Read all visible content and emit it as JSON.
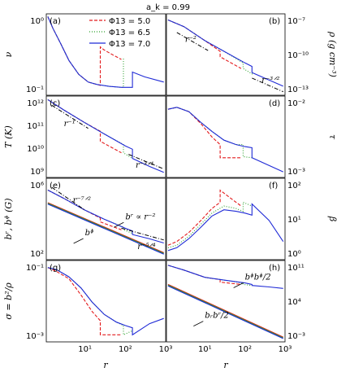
{
  "figure": {
    "title": "a_k = 0.99",
    "xlabel": "r"
  },
  "chart_data": [
    {
      "type": "line",
      "panel": "(a)",
      "ylabel": "ν",
      "ylog": true,
      "xlim": [
        1.1,
        1000
      ],
      "ylim": [
        0.01,
        1.3
      ],
      "yticks": [
        "10⁰",
        "10⁻¹"
      ],
      "xticks": [],
      "series": [
        {
          "name": "Φ13 = 5.0",
          "color": "#e31a1c",
          "dash": "4,2",
          "x": [
            1.2,
            1.6,
            2.5,
            4,
            7,
            12,
            20,
            24,
            24,
            30,
            50,
            80
          ],
          "y": [
            1.1,
            0.55,
            0.22,
            0.08,
            0.035,
            0.022,
            0.019,
            0.018,
            0.18,
            0.15,
            0.11,
            0.085
          ]
        },
        {
          "name": "Φ13 = 6.5",
          "color": "#2ca02c",
          "dash": "1,2",
          "x": [
            1.2,
            1.6,
            2.5,
            4,
            7,
            12,
            20,
            40,
            80,
            90,
            90
          ],
          "y": [
            1.1,
            0.55,
            0.22,
            0.08,
            0.035,
            0.022,
            0.019,
            0.017,
            0.016,
            0.016,
            0.09
          ]
        },
        {
          "name": "Φ13 = 7.0",
          "color": "#1f2ad6",
          "dash": "",
          "x": [
            1.2,
            1.6,
            2.5,
            4,
            7,
            12,
            20,
            40,
            80,
            150,
            150,
            300,
            900
          ],
          "y": [
            1.1,
            0.55,
            0.22,
            0.08,
            0.035,
            0.022,
            0.019,
            0.017,
            0.016,
            0.016,
            0.04,
            0.03,
            0.022
          ]
        }
      ],
      "annotations": []
    },
    {
      "type": "line",
      "panel": "(b)",
      "ylabel": "ρ (g cm⁻³)",
      "ylog": true,
      "xlim": [
        1.1,
        1000
      ],
      "ylim": [
        1e-13,
        1e-06
      ],
      "yticks": [
        "10⁻⁷",
        "10⁻¹⁰",
        "10⁻¹³"
      ],
      "xticks": [],
      "series": [
        {
          "name": "",
          "color": "#e31a1c",
          "dash": "4,2",
          "x": [
            1.2,
            3,
            10,
            24,
            24,
            80
          ],
          "y": [
            3e-07,
            8e-08,
            5e-09,
            6e-10,
            2e-10,
            2e-11
          ]
        },
        {
          "name": "",
          "color": "#2ca02c",
          "dash": "1,2",
          "x": [
            1.2,
            3,
            10,
            30,
            90,
            90,
            160
          ],
          "y": [
            3e-07,
            8e-08,
            5e-09,
            6e-10,
            6e-11,
            2e-11,
            6e-12
          ]
        },
        {
          "name": "",
          "color": "#1f2ad6",
          "dash": "",
          "x": [
            1.2,
            3,
            10,
            30,
            100,
            150,
            150,
            400,
            900
          ],
          "y": [
            3e-07,
            8e-08,
            5e-09,
            6e-10,
            6e-11,
            3e-11,
            9e-12,
            2e-12,
            6e-13
          ]
        }
      ],
      "annotations": [
        {
          "text": "r⁻²",
          "style": "dashdot",
          "x": [
            2,
            12
          ],
          "y": [
            2.5e-08,
            7e-10
          ],
          "label_at": [
            3.2,
            4e-09
          ]
        },
        {
          "text": "r⁻³ᐟ²",
          "style": "dashdot",
          "x": [
            150,
            900
          ],
          "y": [
            3e-12,
            2e-13
          ],
          "label_at": [
            260,
            1.2e-12
          ]
        }
      ]
    },
    {
      "type": "line",
      "panel": "(c)",
      "ylabel": "T (K)",
      "ylog": true,
      "xlim": [
        1.1,
        1000
      ],
      "ylim": [
        300000000.0,
        1000000000000.0
      ],
      "yticks": [
        "10¹²",
        "10¹¹",
        "10¹⁰",
        "10⁹"
      ],
      "xticks": [],
      "series": [
        {
          "name": "",
          "color": "#e31a1c",
          "dash": "4,2",
          "x": [
            1.2,
            3,
            10,
            24,
            24,
            80
          ],
          "y": [
            700000000000.0,
            250000000000.0,
            70000000000.0,
            30000000000.0,
            11000000000.0,
            3500000000.0
          ]
        },
        {
          "name": "",
          "color": "#2ca02c",
          "dash": "1,2",
          "x": [
            1.2,
            3,
            10,
            30,
            90,
            90,
            150
          ],
          "y": [
            700000000000.0,
            250000000000.0,
            70000000000.0,
            23000000000.0,
            8000000000.0,
            3500000000.0,
            2000000000.0
          ]
        },
        {
          "name": "",
          "color": "#1f2ad6",
          "dash": "",
          "x": [
            1.2,
            3,
            10,
            30,
            100,
            150,
            150,
            400,
            900
          ],
          "y": [
            700000000000.0,
            250000000000.0,
            70000000000.0,
            23000000000.0,
            7000000000.0,
            5000000000.0,
            2000000000.0,
            900000000.0,
            500000000.0
          ]
        }
      ],
      "annotations": [
        {
          "text": "r⁻¹",
          "style": "dashdot",
          "x": [
            1.5,
            12
          ],
          "y": [
            400000000000.0,
            40000000000.0
          ],
          "label_at": [
            3,
            50000000000.0
          ]
        },
        {
          "text": "r⁻³ᐟ⁴",
          "style": "dashdot",
          "x": [
            120,
            900
          ],
          "y": [
            3000000000.0,
            700000000.0
          ],
          "label_at": [
            180,
            800000000.0
          ]
        }
      ]
    },
    {
      "type": "line",
      "panel": "(d)",
      "ylabel": "τ",
      "ylog": true,
      "xlim": [
        1.1,
        1000
      ],
      "ylim": [
        0.0003,
        0.5
      ],
      "yticks": [
        "10⁻²",
        "10⁻³"
      ],
      "xticks": [],
      "series": [
        {
          "name": "",
          "color": "#e31a1c",
          "dash": "4,2",
          "x": [
            1.2,
            2,
            4,
            8,
            15,
            24,
            24,
            50,
            80
          ],
          "y": [
            0.15,
            0.18,
            0.12,
            0.04,
            0.012,
            0.006,
            0.0018,
            0.0018,
            0.0018
          ]
        },
        {
          "name": "",
          "color": "#2ca02c",
          "dash": "1,2",
          "x": [
            1.2,
            2,
            4,
            8,
            15,
            30,
            60,
            90,
            90,
            150
          ],
          "y": [
            0.15,
            0.18,
            0.12,
            0.045,
            0.02,
            0.009,
            0.006,
            0.006,
            0.002,
            0.0018
          ]
        },
        {
          "name": "",
          "color": "#1f2ad6",
          "dash": "",
          "x": [
            1.2,
            2,
            4,
            8,
            15,
            30,
            60,
            100,
            150,
            150,
            900
          ],
          "y": [
            0.15,
            0.18,
            0.12,
            0.045,
            0.02,
            0.009,
            0.006,
            0.005,
            0.0045,
            0.0018,
            0.0005
          ]
        }
      ],
      "annotations": []
    },
    {
      "type": "line",
      "panel": "(e)",
      "ylabel": "bʳ, bᶲ (G)",
      "ylog": true,
      "xlim": [
        1.1,
        1000
      ],
      "ylim": [
        0.1,
        100000000.0
      ],
      "yticks": [
        "10⁶",
        "10²"
      ],
      "xticks": [],
      "series": [
        {
          "name": "",
          "color": "#e31a1c",
          "dash": "4,2",
          "x": [
            1.2,
            3,
            10,
            24,
            24,
            80
          ],
          "y": [
            5000000.0,
            600000.0,
            30000.0,
            4000.0,
            1500.0,
            200
          ]
        },
        {
          "name": "",
          "color": "#2ca02c",
          "dash": "1,2",
          "x": [
            1.2,
            3,
            10,
            30,
            90,
            90,
            150
          ],
          "y": [
            5000000.0,
            600000.0,
            30000.0,
            3000.0,
            400,
            200,
            80
          ]
        },
        {
          "name": "",
          "color": "#1f2ad6",
          "dash": "",
          "x": [
            1.2,
            3,
            10,
            30,
            100,
            150,
            150,
            400,
            900
          ],
          "y": [
            5000000.0,
            600000.0,
            30000.0,
            3000.0,
            300,
            150,
            60,
            20,
            7
          ]
        },
        {
          "name": "",
          "color": "#e31a1c",
          "dash": "",
          "x": [
            1.2,
            900
          ],
          "y": [
            200000.0,
            0.6
          ]
        },
        {
          "name": "",
          "color": "#2ca02c",
          "dash": "",
          "x": [
            1.2,
            900
          ],
          "y": [
            170000.0,
            0.5
          ]
        },
        {
          "name": "",
          "color": "#1f2ad6",
          "dash": "",
          "x": [
            1.2,
            900
          ],
          "y": [
            140000.0,
            0.4
          ]
        }
      ],
      "annotations": [
        {
          "text": "r⁻⁷ᐟ²",
          "style": "dashdot",
          "x": [
            1.5,
            10
          ],
          "y": [
            10000000.0,
            30000.0
          ],
          "label_at": [
            5,
            200000.0
          ]
        },
        {
          "text": "r⁻⁵ᐟ⁴",
          "style": "dashdot",
          "x": [
            80,
            900
          ],
          "y": [
            300,
            15
          ],
          "label_at": [
            200,
            1.5
          ]
        },
        {
          "text": "bʳ ∝ r⁻²",
          "style": "arrow",
          "label_at": [
            100,
            3000.0
          ]
        },
        {
          "text": "bᶲ",
          "style": "arrow",
          "label_at": [
            10,
            50
          ]
        }
      ]
    },
    {
      "type": "line",
      "panel": "(f)",
      "ylabel": "β",
      "ylog": true,
      "xlim": [
        1.1,
        1000
      ],
      "ylim": [
        1,
        500
      ],
      "yticks": [
        "10²",
        "10¹",
        "10⁰"
      ],
      "xticks": [],
      "series": [
        {
          "name": "",
          "color": "#e31a1c",
          "dash": "4,2",
          "x": [
            1.2,
            2,
            4,
            8,
            15,
            24,
            24,
            40,
            80
          ],
          "y": [
            3,
            4,
            8,
            20,
            50,
            80,
            200,
            120,
            60
          ]
        },
        {
          "name": "",
          "color": "#2ca02c",
          "dash": "1,2",
          "x": [
            1.2,
            2,
            4,
            8,
            15,
            30,
            60,
            90,
            90,
            150
          ],
          "y": [
            2.5,
            3,
            6,
            15,
            35,
            60,
            50,
            40,
            80,
            60
          ]
        },
        {
          "name": "",
          "color": "#1f2ad6",
          "dash": "",
          "x": [
            1.2,
            2,
            4,
            8,
            15,
            30,
            60,
            100,
            150,
            150,
            400,
            900
          ],
          "y": [
            2,
            2.5,
            5,
            12,
            28,
            45,
            40,
            35,
            30,
            70,
            20,
            4
          ]
        }
      ],
      "annotations": []
    },
    {
      "type": "line",
      "panel": "(g)",
      "ylabel": "σ = b²/ρ",
      "ylog": true,
      "xlim": [
        1.1,
        1000
      ],
      "ylim": [
        0.0001,
        0.3
      ],
      "yticks": [
        "10⁻¹",
        "10⁻³"
      ],
      "xticks": [
        "10¹",
        "10²",
        "10³"
      ],
      "series": [
        {
          "name": "",
          "color": "#e31a1c",
          "dash": "4,2",
          "x": [
            1.2,
            2,
            4,
            8,
            15,
            24,
            24,
            80
          ],
          "y": [
            0.15,
            0.1,
            0.05,
            0.01,
            0.002,
            0.0008,
            0.0002,
            0.0002
          ]
        },
        {
          "name": "",
          "color": "#2ca02c",
          "dash": "1,2",
          "x": [
            1.2,
            2,
            4,
            8,
            15,
            30,
            60,
            90,
            90,
            150
          ],
          "y": [
            0.15,
            0.12,
            0.06,
            0.02,
            0.005,
            0.0015,
            0.0007,
            0.0005,
            0.0002,
            0.0003
          ]
        },
        {
          "name": "",
          "color": "#1f2ad6",
          "dash": "",
          "x": [
            1.2,
            2,
            4,
            8,
            15,
            30,
            60,
            100,
            150,
            150,
            400,
            900
          ],
          "y": [
            0.15,
            0.12,
            0.06,
            0.02,
            0.005,
            0.0015,
            0.0007,
            0.0005,
            0.0004,
            0.0002,
            0.0006,
            0.001
          ]
        }
      ],
      "annotations": []
    },
    {
      "type": "line",
      "panel": "(h)",
      "ylabel": "",
      "ylog": true,
      "xlim": [
        1.1,
        1000
      ],
      "ylim": [
        0.001,
        100000000000000.0
      ],
      "yticks": [
        "10¹¹",
        "10⁴",
        "10⁻³"
      ],
      "xticks": [
        "10¹",
        "10²",
        "10³"
      ],
      "series": [
        {
          "name": "",
          "color": "#e31a1c",
          "dash": "4,2",
          "x": [
            1.2,
            3,
            10,
            24,
            24,
            80
          ],
          "y": [
            10000000000000.0,
            1000000000000.0,
            30000000000.0,
            10000000000.0,
            3000000000.0,
            1000000000.0
          ]
        },
        {
          "name": "",
          "color": "#2ca02c",
          "dash": "1,2",
          "x": [
            1.2,
            3,
            10,
            30,
            90,
            90,
            150
          ],
          "y": [
            10000000000000.0,
            1000000000000.0,
            30000000000.0,
            8000000000.0,
            2000000000.0,
            1000000000.0,
            600000000.0
          ]
        },
        {
          "name": "",
          "color": "#1f2ad6",
          "dash": "",
          "x": [
            1.2,
            3,
            10,
            30,
            100,
            150,
            150,
            400,
            900
          ],
          "y": [
            10000000000000.0,
            1000000000000.0,
            30000000000.0,
            8000000000.0,
            2000000000.0,
            1000000000.0,
            600000000.0,
            300000000.0,
            150000000.0
          ]
        },
        {
          "name": "",
          "color": "#e31a1c",
          "dash": "",
          "x": [
            1.2,
            900
          ],
          "y": [
            1000000000.0,
            0.01
          ]
        },
        {
          "name": "",
          "color": "#2ca02c",
          "dash": "",
          "x": [
            1.2,
            900
          ],
          "y": [
            700000000.0,
            0.007
          ]
        },
        {
          "name": "",
          "color": "#1f2ad6",
          "dash": "",
          "x": [
            1.2,
            900
          ],
          "y": [
            500000000.0,
            0.005
          ]
        }
      ],
      "annotations": [
        {
          "text": "bᶲbᶲ/2",
          "style": "arrow",
          "label_at": [
            100,
            10000000000.0
          ]
        },
        {
          "text": "bᵣbʳ/2",
          "style": "arrow",
          "label_at": [
            10,
            100
          ]
        }
      ]
    }
  ],
  "legend": {
    "placement": "top-right of panel (a)",
    "items": [
      "Φ13 = 5.0",
      "Φ13 = 6.5",
      "Φ13 = 7.0"
    ]
  }
}
